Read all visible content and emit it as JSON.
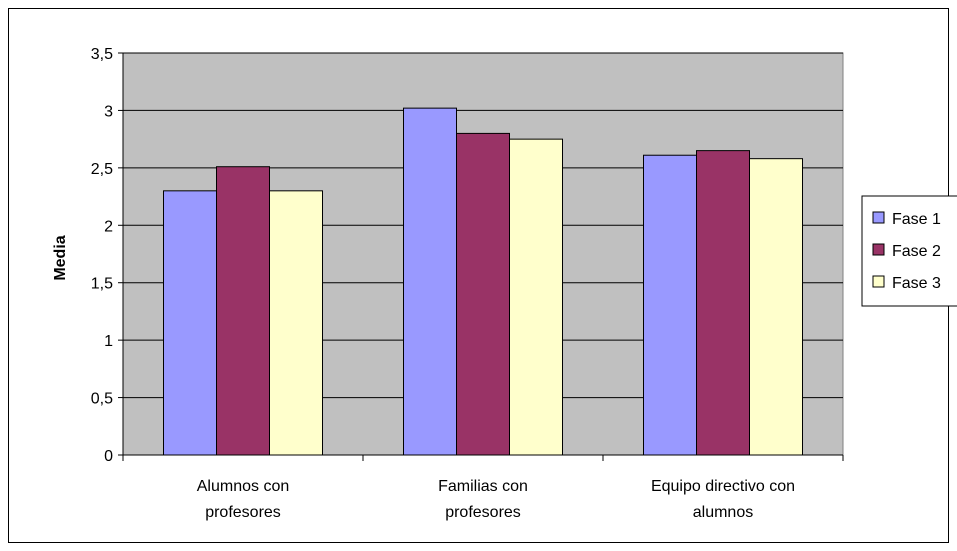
{
  "chart_data": {
    "type": "bar",
    "title": "",
    "xlabel": "",
    "ylabel": "Media",
    "ylim": [
      0,
      3.5
    ],
    "yticks": [
      "0",
      "0,5",
      "1",
      "1,5",
      "2",
      "2,5",
      "3",
      "3,5"
    ],
    "categories": [
      [
        "Alumnos con",
        "profesores"
      ],
      [
        "Familias con",
        "profesores"
      ],
      [
        "Equipo directivo con",
        "alumnos"
      ]
    ],
    "series": [
      {
        "name": "Fase 1",
        "values": [
          2.3,
          3.02,
          2.61
        ],
        "color": "#9999FF"
      },
      {
        "name": "Fase 2",
        "values": [
          2.51,
          2.8,
          2.65
        ],
        "color": "#993366"
      },
      {
        "name": "Fase 3",
        "values": [
          2.3,
          2.75,
          2.58
        ],
        "color": "#FFFFCC"
      }
    ],
    "plot_background": "#C0C0C0",
    "grid": true,
    "legend_position": "right"
  }
}
